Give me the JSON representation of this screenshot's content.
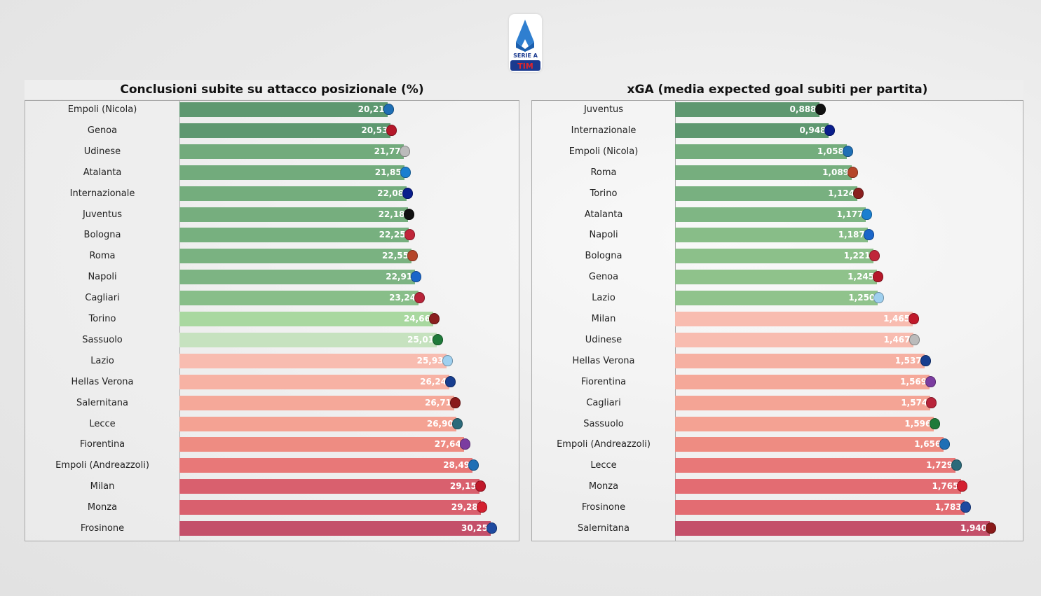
{
  "logo": {
    "text": "SERIE A",
    "sub": "TIM"
  },
  "chart_data": [
    {
      "type": "bar",
      "orientation": "horizontal",
      "title": "Conclusioni subite su attacco posizionale (%)",
      "xlim": [
        0,
        30.25
      ],
      "categories": [
        "Empoli (Nicola)",
        "Genoa",
        "Udinese",
        "Atalanta",
        "Internazionale",
        "Juventus",
        "Bologna",
        "Roma",
        "Napoli",
        "Cagliari",
        "Torino",
        "Sassuolo",
        "Lazio",
        "Hellas Verona",
        "Salernitana",
        "Lecce",
        "Fiorentina",
        "Empoli (Andreazzoli)",
        "Milan",
        "Monza",
        "Frosinone"
      ],
      "labels": [
        "20,21",
        "20,53",
        "21,77",
        "21,85",
        "22,08",
        "22,18",
        "22,25",
        "22,55",
        "22,91",
        "23,24",
        "24,66",
        "25,01",
        "25,93",
        "26,24",
        "26,71",
        "26,90",
        "27,64",
        "28,49",
        "29,15",
        "29,28",
        "30,25"
      ],
      "values": [
        20.21,
        20.53,
        21.77,
        21.85,
        22.08,
        22.18,
        22.25,
        22.55,
        22.91,
        23.24,
        24.66,
        25.01,
        25.93,
        26.24,
        26.71,
        26.9,
        27.64,
        28.49,
        29.15,
        29.28,
        30.25
      ],
      "colors": [
        "#5e9870",
        "#5e9870",
        "#72ab7c",
        "#72ab7c",
        "#74ad7d",
        "#76ae7e",
        "#77b07f",
        "#7ab281",
        "#7db483",
        "#88be89",
        "#a9d8a0",
        "#c6e2bf",
        "#f8bcb0",
        "#f7b2a4",
        "#f5a899",
        "#f4a293",
        "#ee8c82",
        "#e87878",
        "#d9606e",
        "#d9606e",
        "#c4506a"
      ],
      "crests": [
        "#1f6fb5",
        "#b5182a",
        "#bbbbbb",
        "#1a7fd0",
        "#0a1e8c",
        "#111111",
        "#c0263a",
        "#b5462a",
        "#1b66c9",
        "#b8243a",
        "#8a1f1f",
        "#1f7a3a",
        "#9fd0ef",
        "#173e8f",
        "#8a1a1a",
        "#2c6a7a",
        "#7b3ca0",
        "#1f6fb5",
        "#c0182a",
        "#d42030",
        "#1f4aa0"
      ]
    },
    {
      "type": "bar",
      "orientation": "horizontal",
      "title": "xGA (media expected goal subiti per partita)",
      "xlim": [
        0,
        1.94
      ],
      "categories": [
        "Juventus",
        "Internazionale",
        "Empoli (Nicola)",
        "Roma",
        "Torino",
        "Atalanta",
        "Napoli",
        "Bologna",
        "Genoa",
        "Lazio",
        "Milan",
        "Udinese",
        "Hellas Verona",
        "Fiorentina",
        "Cagliari",
        "Sassuolo",
        "Empoli (Andreazzoli)",
        "Lecce",
        "Monza",
        "Frosinone",
        "Salernitana"
      ],
      "labels": [
        "0,888",
        "0,948",
        "1,058",
        "1,089",
        "1,124",
        "1,177",
        "1,187",
        "1,221",
        "1,245",
        "1,250",
        "1,465",
        "1,467",
        "1,537",
        "1,569",
        "1,574",
        "1,596",
        "1,656",
        "1,729",
        "1,765",
        "1,783",
        "1,940"
      ],
      "values": [
        0.888,
        0.948,
        1.058,
        1.089,
        1.124,
        1.177,
        1.187,
        1.221,
        1.245,
        1.25,
        1.465,
        1.467,
        1.537,
        1.569,
        1.574,
        1.596,
        1.656,
        1.729,
        1.765,
        1.783,
        1.94
      ],
      "colors": [
        "#5e9870",
        "#5e9870",
        "#74ad7d",
        "#76ae7e",
        "#78b080",
        "#7fb684",
        "#88bd88",
        "#8cc08a",
        "#8fc28b",
        "#90c38c",
        "#f8bcb0",
        "#f8bcb0",
        "#f6b0a2",
        "#f5a899",
        "#f4a495",
        "#f4a293",
        "#ee8c82",
        "#e87878",
        "#e36c72",
        "#e36c72",
        "#c4506a"
      ],
      "crests": [
        "#111111",
        "#0a1e8c",
        "#1f6fb5",
        "#b5462a",
        "#8a1f1f",
        "#1a7fd0",
        "#1b66c9",
        "#c0263a",
        "#b5182a",
        "#9fd0ef",
        "#c0182a",
        "#bbbbbb",
        "#173e8f",
        "#7b3ca0",
        "#b8243a",
        "#1f7a3a",
        "#1f6fb5",
        "#2c6a7a",
        "#d42030",
        "#1f4aa0",
        "#8a1a1a"
      ]
    }
  ]
}
